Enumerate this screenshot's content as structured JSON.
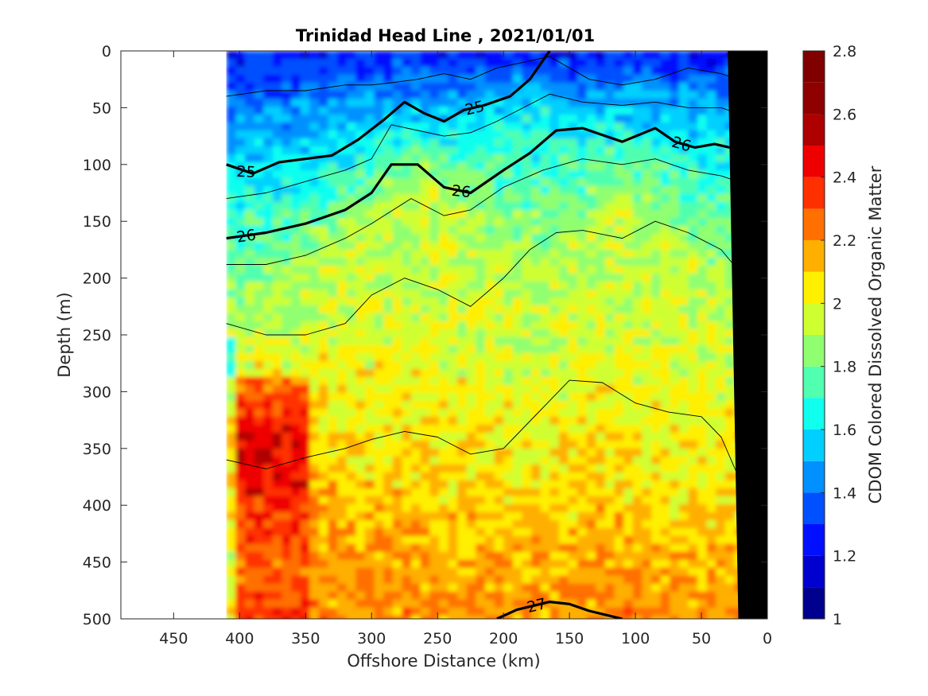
{
  "chart_data": {
    "type": "heatmap",
    "title": "Trinidad Head Line , 2021/01/01",
    "xlabel": "Offshore Distance (km)",
    "ylabel": "Depth (m)",
    "xlim": [
      490,
      0
    ],
    "ylim": [
      0,
      500
    ],
    "x_ticks": [
      "450",
      "400",
      "350",
      "300",
      "250",
      "200",
      "150",
      "100",
      "50",
      "0"
    ],
    "y_ticks": [
      "0",
      "50",
      "100",
      "150",
      "200",
      "250",
      "300",
      "350",
      "400",
      "450",
      "500"
    ],
    "x_tick_values": [
      450,
      400,
      350,
      300,
      250,
      200,
      150,
      100,
      50,
      0
    ],
    "y_tick_values": [
      0,
      50,
      100,
      150,
      200,
      250,
      300,
      350,
      400,
      450,
      500
    ],
    "data_extent_km": [
      410,
      0
    ],
    "colorbar": {
      "label": "CDOM Colored Dissolved Organic Matter",
      "range": [
        1,
        2.8
      ],
      "ticks": [
        "1",
        "1.2",
        "1.4",
        "1.6",
        "1.8",
        "2",
        "2.2",
        "2.4",
        "2.6",
        "2.8"
      ],
      "tick_values": [
        1,
        1.2,
        1.4,
        1.6,
        1.8,
        2,
        2.2,
        2.4,
        2.6,
        2.8
      ],
      "levels": [
        1.0,
        1.1,
        1.2,
        1.3,
        1.4,
        1.5,
        1.6,
        1.7,
        1.8,
        1.9,
        2.0,
        2.1,
        2.2,
        2.3,
        2.4,
        2.5,
        2.6,
        2.7,
        2.8
      ],
      "colors": [
        "#00008f",
        "#0000cf",
        "#0010ff",
        "#0050ff",
        "#0090ff",
        "#00cfff",
        "#10ffef",
        "#50ffaf",
        "#90ff6f",
        "#cfff30",
        "#ffef00",
        "#ffaf00",
        "#ff7000",
        "#ff3000",
        "#ef0000",
        "#af0000",
        "#8f0000",
        "#800000"
      ]
    },
    "profile": {
      "x_km": [
        410,
        380,
        350,
        320,
        290,
        260,
        230,
        200,
        170,
        140,
        110,
        80,
        50,
        30,
        20
      ],
      "surface_layer_depth_m": [
        100,
        105,
        95,
        80,
        70,
        65,
        60,
        55,
        50,
        60,
        65,
        70,
        75,
        80,
        90
      ],
      "mid_layer_depth_m": [
        230,
        220,
        200,
        160,
        130,
        110,
        140,
        170,
        190,
        150,
        130,
        150,
        190,
        200,
        210
      ],
      "high_cdom_depth_m": [
        320,
        300,
        310,
        330,
        340,
        350,
        360,
        370,
        380,
        360,
        360,
        370,
        380,
        380,
        380
      ]
    },
    "bathymetry": {
      "x_km": [
        0,
        22,
        30,
        0
      ],
      "depth_m": [
        500,
        500,
        0,
        0
      ]
    },
    "isopycnals": [
      {
        "label": "25",
        "bold": true,
        "x_km": [
          410,
          390,
          370,
          350,
          330,
          310,
          290,
          275,
          260,
          245,
          230,
          215,
          195,
          180,
          165
        ],
        "depth_m": [
          100,
          108,
          98,
          95,
          92,
          78,
          60,
          45,
          55,
          62,
          52,
          48,
          40,
          25,
          0
        ]
      },
      {
        "label": "26",
        "bold": true,
        "x_km": [
          410,
          380,
          350,
          320,
          300,
          285,
          265,
          245,
          225,
          200,
          180,
          160,
          140,
          110,
          85,
          70,
          55,
          40,
          10
        ],
        "depth_m": [
          165,
          160,
          152,
          140,
          125,
          100,
          100,
          120,
          125,
          105,
          90,
          70,
          68,
          80,
          68,
          80,
          85,
          82,
          90
        ]
      },
      {
        "label": "27",
        "bold": true,
        "x_km": [
          205,
          190,
          165,
          150,
          135,
          110
        ],
        "depth_m": [
          500,
          492,
          485,
          487,
          493,
          500
        ]
      },
      {
        "label": "",
        "bold": false,
        "x_km": [
          410,
          380,
          350,
          320,
          300,
          285,
          265,
          245,
          225,
          205,
          185,
          165,
          135,
          110,
          85,
          60,
          35,
          10
        ],
        "depth_m": [
          40,
          35,
          35,
          30,
          30,
          28,
          25,
          20,
          25,
          15,
          10,
          5,
          25,
          30,
          25,
          15,
          20,
          30
        ]
      },
      {
        "label": "",
        "bold": false,
        "x_km": [
          410,
          380,
          350,
          320,
          300,
          285,
          265,
          245,
          225,
          205,
          185,
          165,
          140,
          110,
          85,
          60,
          35,
          10
        ],
        "depth_m": [
          130,
          125,
          115,
          105,
          95,
          65,
          70,
          75,
          72,
          62,
          50,
          38,
          45,
          48,
          45,
          50,
          50,
          60
        ]
      },
      {
        "label": "",
        "bold": false,
        "x_km": [
          410,
          380,
          350,
          320,
          300,
          270,
          245,
          225,
          200,
          170,
          140,
          110,
          85,
          60,
          35,
          10
        ],
        "depth_m": [
          188,
          188,
          180,
          165,
          152,
          130,
          145,
          140,
          120,
          105,
          95,
          100,
          95,
          105,
          110,
          120
        ]
      },
      {
        "label": "",
        "bold": false,
        "x_km": [
          410,
          380,
          350,
          320,
          300,
          275,
          250,
          225,
          200,
          180,
          160,
          140,
          110,
          85,
          60,
          35,
          10
        ],
        "depth_m": [
          240,
          250,
          250,
          240,
          215,
          200,
          210,
          225,
          200,
          175,
          160,
          158,
          165,
          150,
          160,
          175,
          210
        ]
      },
      {
        "label": "",
        "bold": false,
        "x_km": [
          410,
          380,
          350,
          320,
          300,
          275,
          250,
          225,
          200,
          175,
          150,
          125,
          100,
          75,
          50,
          35,
          20
        ],
        "depth_m": [
          360,
          368,
          358,
          350,
          342,
          335,
          340,
          355,
          350,
          320,
          290,
          292,
          310,
          318,
          322,
          340,
          380
        ]
      }
    ]
  }
}
